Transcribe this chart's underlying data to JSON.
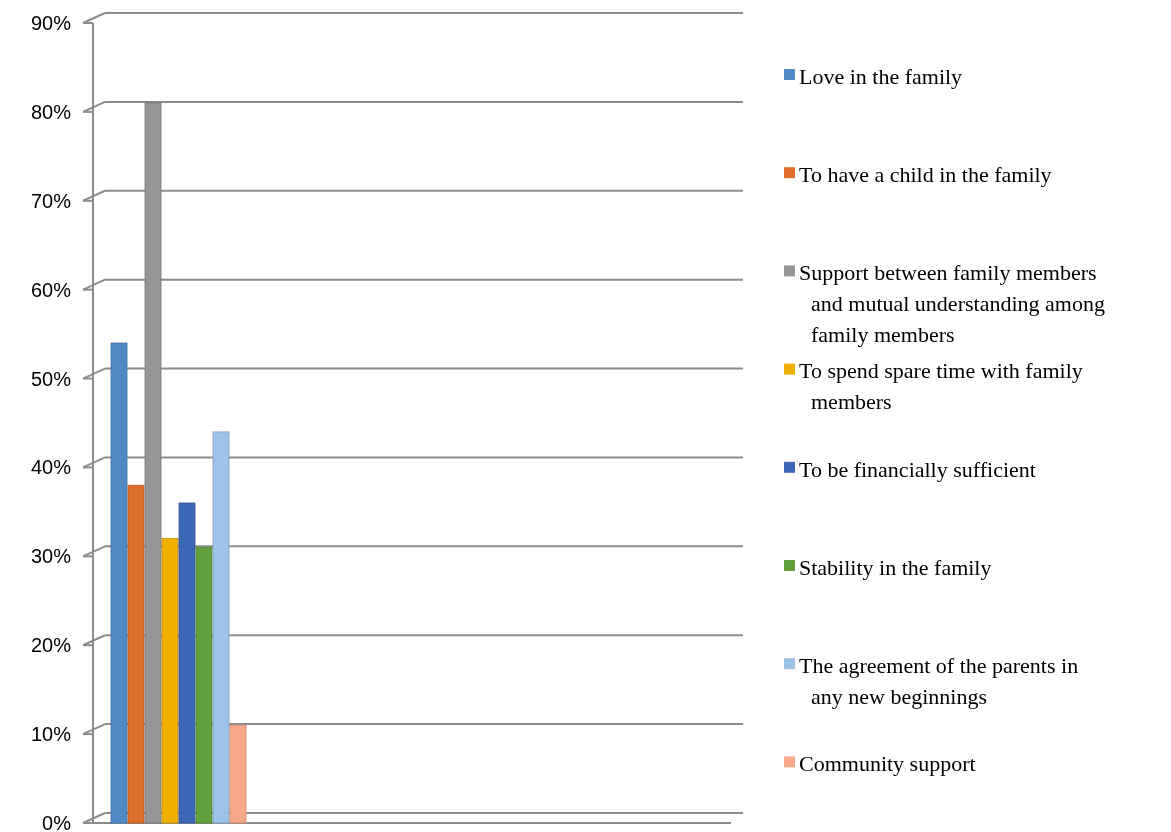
{
  "chart_data": {
    "type": "bar",
    "categories": [
      null
    ],
    "series": [
      {
        "name": "Love in the family",
        "color": "#4f8ac6",
        "values": [
          54
        ]
      },
      {
        "name": "To have a child in the family",
        "color": "#e0702c",
        "values": [
          38
        ]
      },
      {
        "name": "Support between family members and mutual understanding among family members",
        "color": "#969696",
        "values": [
          81
        ]
      },
      {
        "name": "To spend spare time with family members",
        "color": "#f0b000",
        "values": [
          32
        ]
      },
      {
        "name": "To be financially sufficient",
        "color": "#3c67b4",
        "values": [
          36
        ]
      },
      {
        "name": "Stability in the family",
        "color": "#62a03c",
        "values": [
          31
        ]
      },
      {
        "name": "The agreement of the parents in any new beginnings",
        "color": "#9dc3e8",
        "values": [
          44
        ]
      },
      {
        "name": "Community support",
        "color": "#f7a98a",
        "values": [
          11
        ]
      }
    ],
    "ylim": [
      0,
      90
    ],
    "yticks": [
      {
        "value": 0,
        "label": "0%"
      },
      {
        "value": 10,
        "label": "10%"
      },
      {
        "value": 20,
        "label": "20%"
      },
      {
        "value": 30,
        "label": "30%"
      },
      {
        "value": 40,
        "label": "40%"
      },
      {
        "value": 50,
        "label": "50%"
      },
      {
        "value": 60,
        "label": "60%"
      },
      {
        "value": 70,
        "label": "70%"
      },
      {
        "value": 80,
        "label": "80%"
      },
      {
        "value": 90,
        "label": "90%"
      }
    ],
    "grid": "y",
    "legend": "right"
  }
}
